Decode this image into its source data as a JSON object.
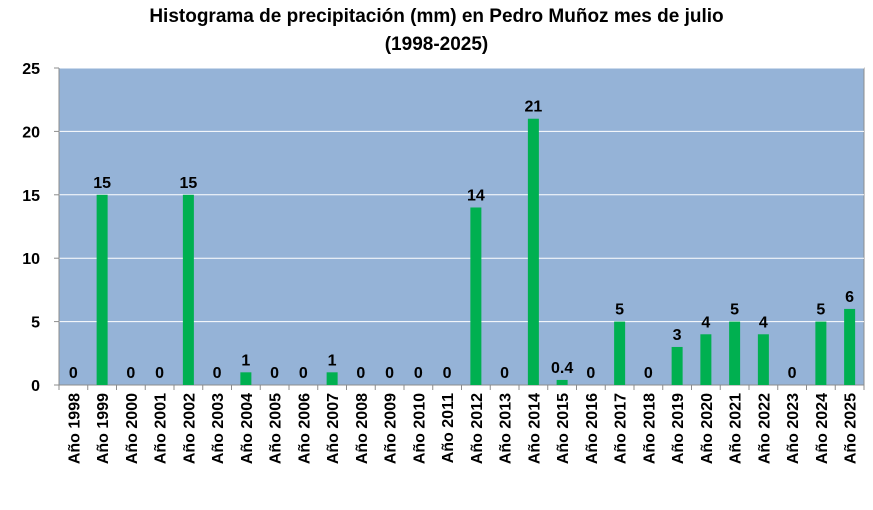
{
  "chart_data": {
    "type": "bar",
    "title": "Histograma de precipitación (mm) en Pedro Muñoz mes de julio",
    "subtitle": "(1998-2025)",
    "categories": [
      "Año 1998",
      "Año 1999",
      "Año 2000",
      "Año 2001",
      "Año 2002",
      "Año 2003",
      "Año 2004",
      "Año 2005",
      "Año 2006",
      "Año 2007",
      "Año 2008",
      "Año 2009",
      "Año 2010",
      "Año 2011",
      "Año 2012",
      "Año 2013",
      "Año 2014",
      "Año 2015",
      "Año 2016",
      "Año 2017",
      "Año 2018",
      "Año 2019",
      "Año 2020",
      "Año 2021",
      "Año 2022",
      "Año 2023",
      "Año 2024",
      "Año 2025"
    ],
    "values": [
      0,
      15,
      0,
      0,
      15,
      0,
      1,
      0,
      0,
      1,
      0,
      0,
      0,
      0,
      14,
      0,
      21,
      0.4,
      0,
      5,
      0,
      3,
      4,
      5,
      4,
      0,
      5,
      6
    ],
    "data_labels": [
      "0",
      "15",
      "0",
      "0",
      "15",
      "0",
      "1",
      "0",
      "0",
      "1",
      "0",
      "0",
      "0",
      "0",
      "14",
      "0",
      "21",
      "0.4",
      "0",
      "5",
      "0",
      "3",
      "4",
      "5",
      "4",
      "0",
      "5",
      "6"
    ],
    "y_ticks": [
      "0",
      "5",
      "10",
      "15",
      "20",
      "25"
    ],
    "ylim": [
      0,
      25
    ],
    "xlabel": "",
    "ylabel": "",
    "grid": true,
    "bar_color": "#00b050",
    "plot_background": "#95b3d7",
    "gridline_color": "#ffffff"
  }
}
